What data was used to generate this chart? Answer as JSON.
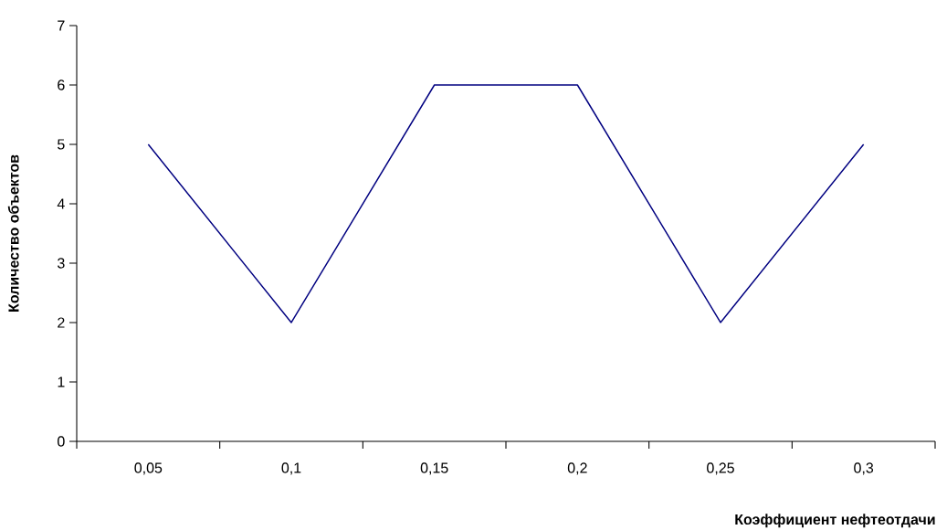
{
  "chart_data": {
    "type": "line",
    "xlabel": "Коэффициент нефтеотдачи",
    "ylabel": "Количество объектов",
    "categories": [
      "0,05",
      "0,1",
      "0,15",
      "0,2",
      "0,25",
      "0,3"
    ],
    "values": [
      5,
      2,
      6,
      6,
      2,
      5
    ],
    "color": "#000080",
    "ylim": [
      0,
      7
    ],
    "yticks": [
      0,
      1,
      2,
      3,
      4,
      5,
      6,
      7
    ],
    "grid": false,
    "marker": "none",
    "line_style": "solid"
  }
}
